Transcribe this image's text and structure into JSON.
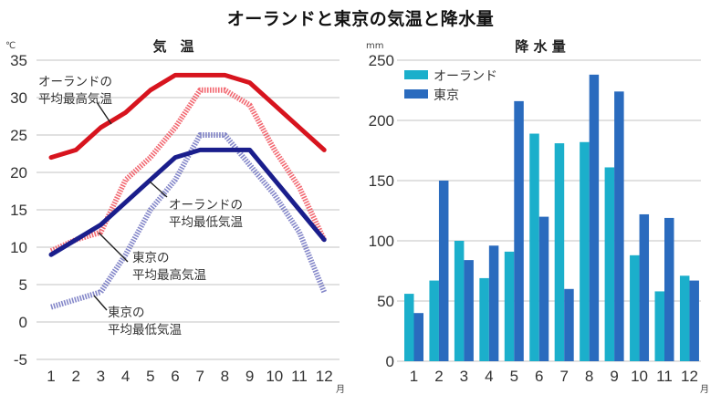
{
  "title": "オーランドと東京の気温と降水量",
  "chart_data": [
    {
      "type": "line",
      "title": "気　温",
      "ylabel": "℃",
      "xlabel": "月",
      "ylim": [
        -5,
        35
      ],
      "yticks": [
        "35",
        "30",
        "25",
        "20",
        "15",
        "10",
        "5",
        "0",
        "-5"
      ],
      "ytick_values": [
        35,
        30,
        25,
        20,
        15,
        10,
        5,
        0,
        -5
      ],
      "categories": [
        "1",
        "2",
        "3",
        "4",
        "5",
        "6",
        "7",
        "8",
        "9",
        "10",
        "11",
        "12"
      ],
      "grid": true,
      "series": [
        {
          "name": "オーランドの平均最高気温",
          "label_lines": [
            "オーランドの",
            "平均最高気温"
          ],
          "color": "#D7141E",
          "style": "solid",
          "values": [
            22,
            23,
            26,
            28,
            31,
            33,
            33,
            33,
            32,
            29,
            26,
            23
          ]
        },
        {
          "name": "オーランドの平均最低気温",
          "label_lines": [
            "オーランドの",
            "平均最低気温"
          ],
          "color": "#1A1E8C",
          "style": "solid",
          "values": [
            9,
            11,
            13,
            16,
            19,
            22,
            23,
            23,
            23,
            19,
            15,
            11
          ]
        },
        {
          "name": "東京の平均最高気温",
          "label_lines": [
            "東京の",
            "平均最高気温"
          ],
          "color": "#F0505A",
          "style": "hatched",
          "values": [
            9.5,
            11,
            12,
            19,
            22,
            26,
            31,
            31,
            29,
            23,
            18,
            11
          ]
        },
        {
          "name": "東京の平均最低気温",
          "label_lines": [
            "東京の",
            "平均最低気温"
          ],
          "color": "#6E72C0",
          "style": "hatched",
          "values": [
            2,
            3,
            4,
            9,
            15,
            19,
            25,
            25,
            21,
            17,
            12,
            4
          ]
        }
      ]
    },
    {
      "type": "bar",
      "title": "降 水 量",
      "ylabel": "mm",
      "xlabel": "月",
      "ylim": [
        0,
        250
      ],
      "yticks": [
        "250",
        "200",
        "150",
        "100",
        "50",
        "0"
      ],
      "ytick_values": [
        250,
        200,
        150,
        100,
        50,
        0
      ],
      "categories": [
        "1",
        "2",
        "3",
        "4",
        "5",
        "6",
        "7",
        "8",
        "9",
        "10",
        "11",
        "12"
      ],
      "grid": true,
      "legend": "top-left",
      "series": [
        {
          "name": "オーランド",
          "color": "#1BAFCB",
          "values": [
            56,
            67,
            100,
            69,
            91,
            189,
            181,
            182,
            161,
            88,
            58,
            71
          ]
        },
        {
          "name": "東京",
          "color": "#2A6BBE",
          "values": [
            40,
            150,
            84,
            96,
            216,
            120,
            60,
            238,
            224,
            122,
            119,
            67
          ]
        }
      ]
    }
  ]
}
